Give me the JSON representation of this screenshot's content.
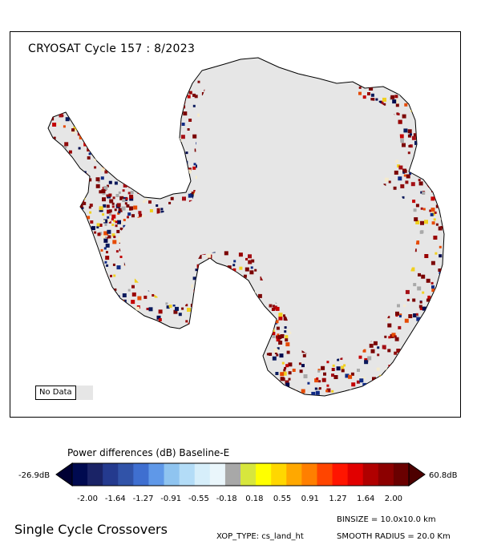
{
  "map": {
    "title": "CRYOSAT Cycle 157 : 8/2023",
    "no_data_label": "No Data",
    "no_data_color": "#e6e6e6",
    "edge_colors": [
      "#7a0000",
      "#8f0d0d",
      "#a50f15",
      "#0a1a5c",
      "#000a4f",
      "#7d0a0a",
      "#a9a9a9",
      "#c40000",
      "#7a0000",
      "#f0d020",
      "#f5ebcc",
      "#102a84",
      "#e64a00",
      "#7a0000",
      "#990000"
    ],
    "outline_color": "#000000"
  },
  "colorbar": {
    "title": "Power differences (dB) Baseline-E",
    "min_label": "-26.9dB",
    "max_label": "60.8dB",
    "colors": [
      "#000a50",
      "#1a2366",
      "#243a8e",
      "#3153a8",
      "#3f6fd0",
      "#5f98e8",
      "#8fc4f0",
      "#b3dcf7",
      "#d6eefa",
      "#eaf6fb",
      "#a8a8a8",
      "#d7e63d",
      "#ffff00",
      "#ffd700",
      "#ffa800",
      "#ff7f00",
      "#ff4500",
      "#ff1500",
      "#e10000",
      "#b00000",
      "#8c0000",
      "#6a0000"
    ],
    "low_arrow_color": "#000033",
    "high_arrow_color": "#4d0000",
    "ticks": [
      "-2.00",
      "-1.64",
      "-1.27",
      "-0.91",
      "-0.55",
      "-0.18",
      "0.18",
      "0.55",
      "0.91",
      "1.27",
      "1.64",
      "2.00"
    ]
  },
  "footer": {
    "title": "Single Cycle Crossovers",
    "binsize": "BINSIZE = 10.0x10.0 km",
    "xop_type": "XOP_TYPE: cs_land_ht",
    "smooth_radius": "SMOOTH RADIUS = 20.0 Km"
  }
}
